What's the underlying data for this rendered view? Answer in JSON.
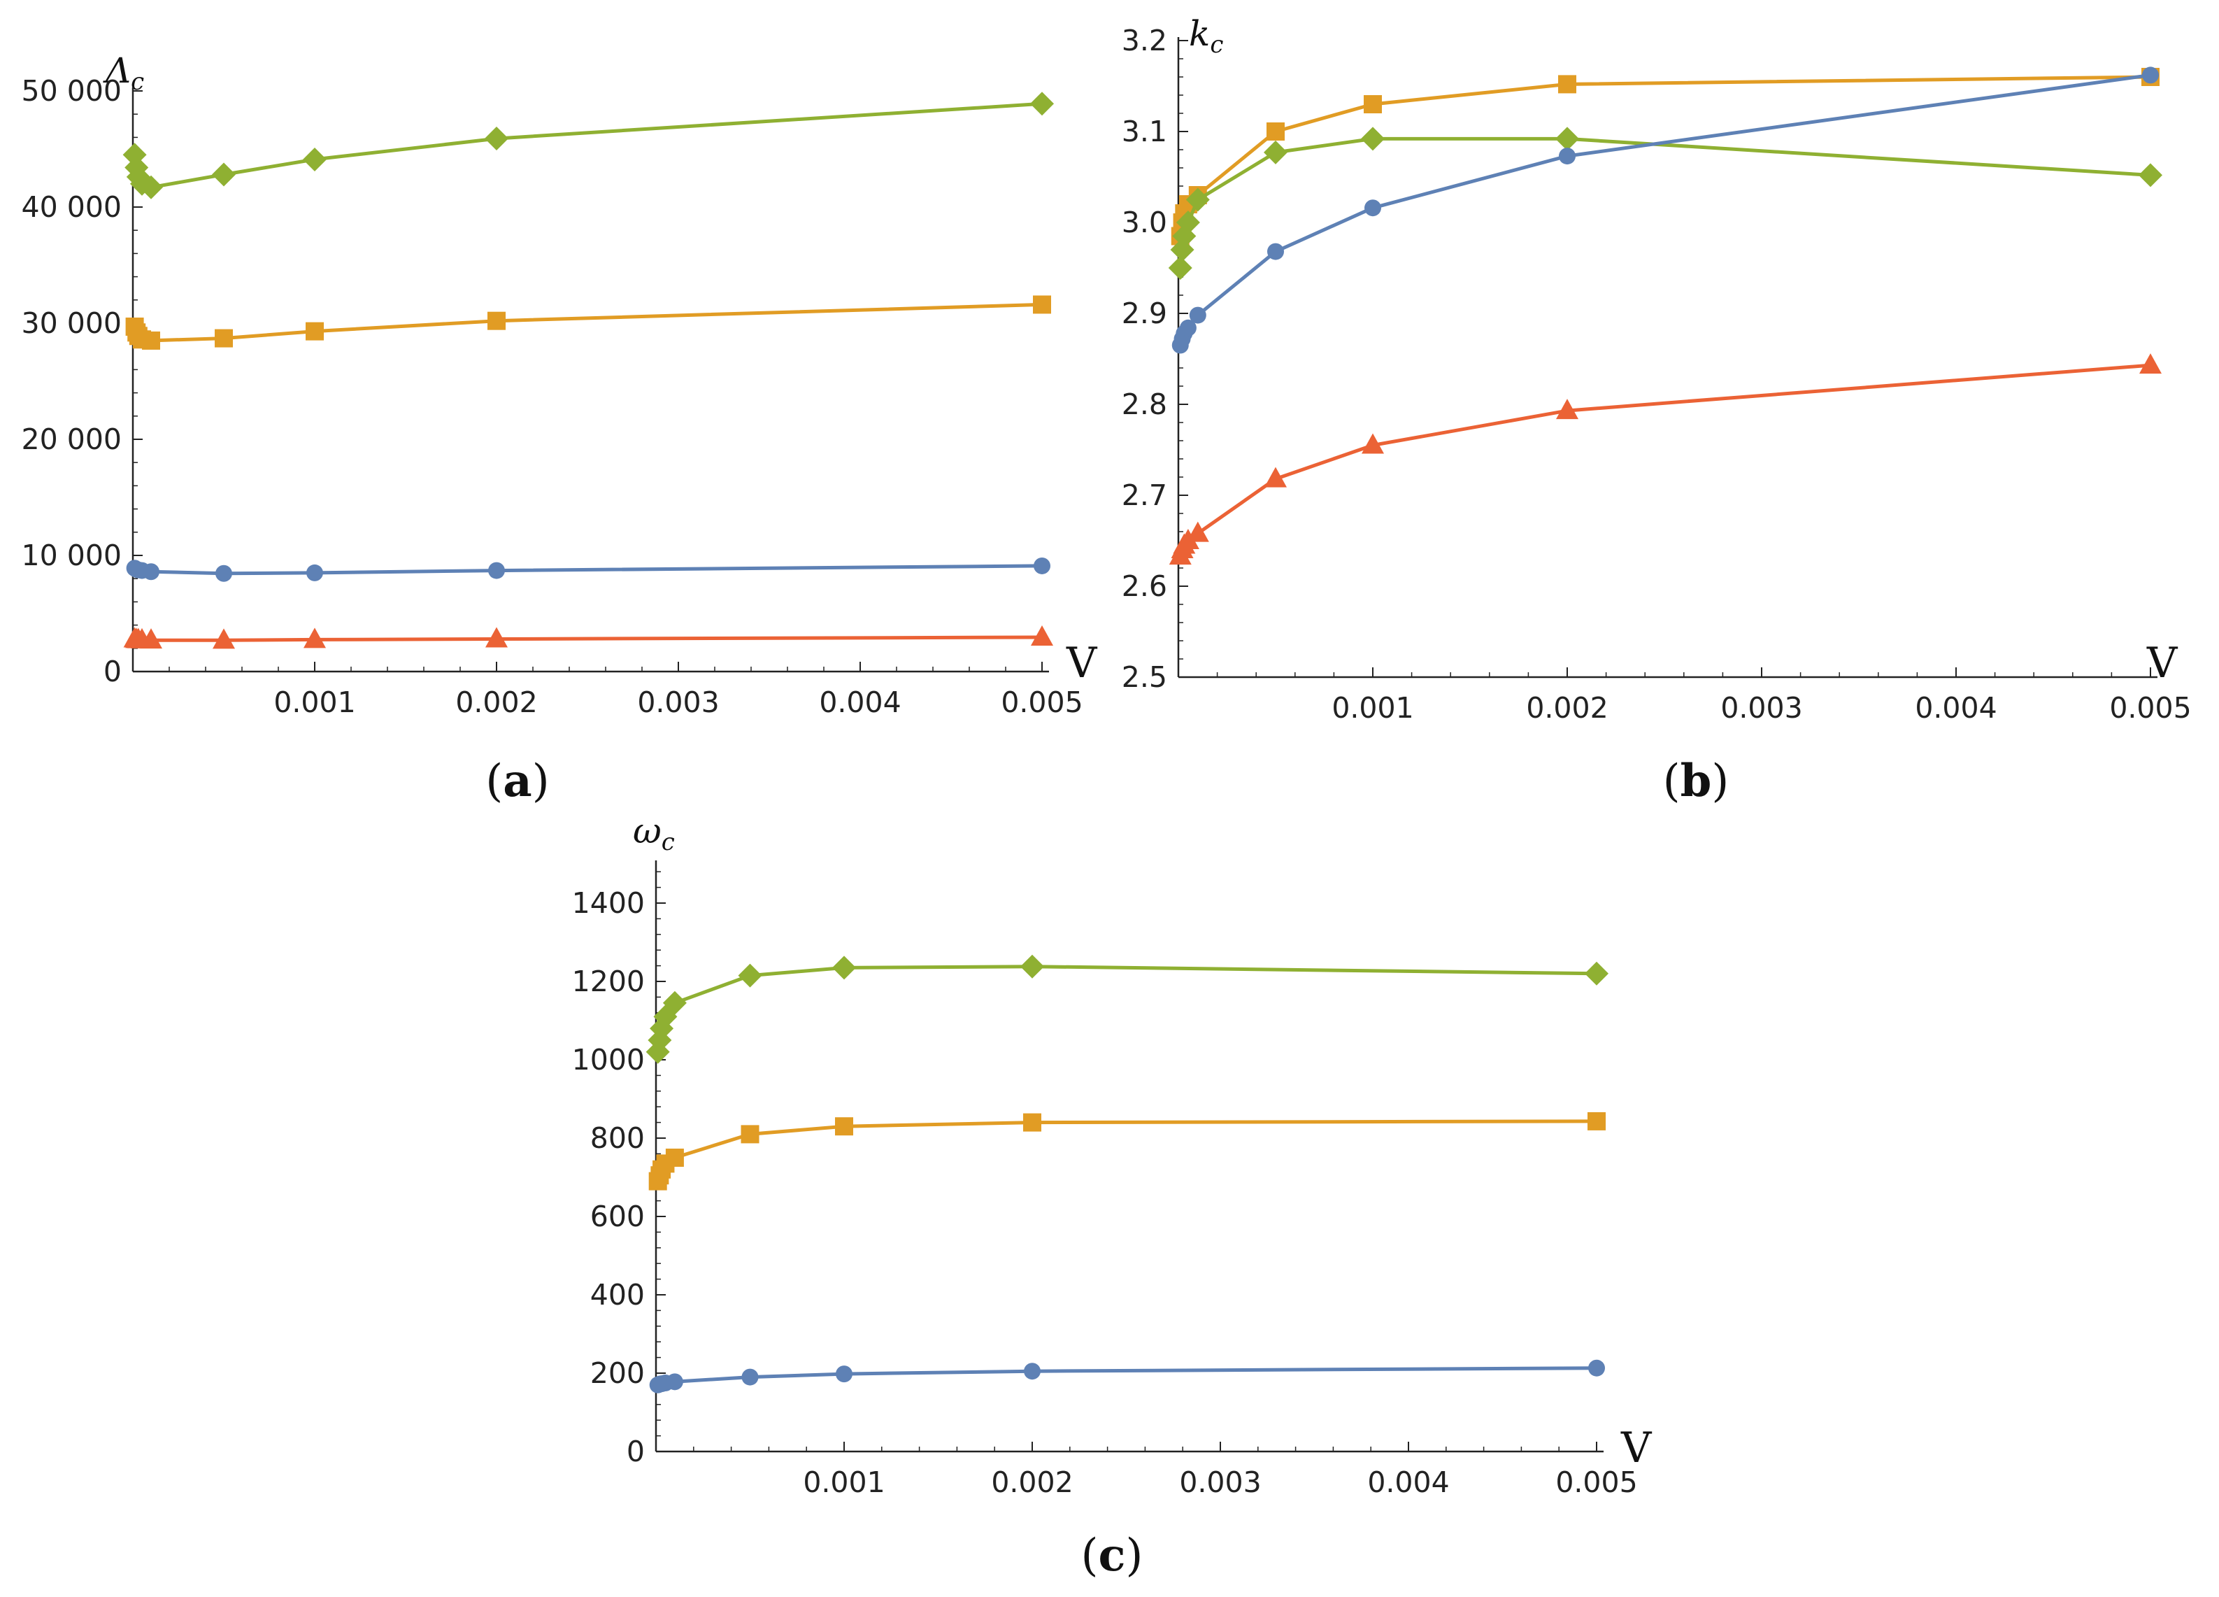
{
  "figure_colors": {
    "blue": "#5E81B5",
    "orange": "#E19C24",
    "green": "#8FB032",
    "red": "#EB6235",
    "axis": "#222222"
  },
  "chart_data": [
    {
      "id": "a",
      "type": "line",
      "panel_label": "a",
      "ylabel": "Λ",
      "ylabel_sub": "c",
      "xlabel": "V",
      "xlim": [
        0,
        0.005
      ],
      "ylim": [
        0,
        50000
      ],
      "xticks": [
        0.001,
        0.002,
        0.003,
        0.004,
        0.005
      ],
      "xtick_labels": [
        "0.001",
        "0.002",
        "0.003",
        "0.004",
        "0.005"
      ],
      "yticks": [
        0,
        10000,
        20000,
        30000,
        40000,
        50000
      ],
      "ytick_labels": [
        "0",
        "10 000",
        "20 000",
        "30 000",
        "40 000",
        "50 000"
      ],
      "x": [
        1e-05,
        2e-05,
        3e-05,
        5e-05,
        0.0001,
        0.0005,
        0.001,
        0.002,
        0.005
      ],
      "series": [
        {
          "name": "diamond series",
          "color": "#8FB032",
          "marker": "diamond",
          "values": [
            44500,
            43400,
            42600,
            42000,
            41700,
            42800,
            44100,
            45900,
            48900
          ]
        },
        {
          "name": "square series",
          "color": "#E19C24",
          "marker": "square",
          "values": [
            29700,
            29200,
            28900,
            28600,
            28500,
            28700,
            29300,
            30200,
            31600
          ]
        },
        {
          "name": "circle series",
          "color": "#5E81B5",
          "marker": "circle",
          "values": [
            8900,
            8800,
            8750,
            8700,
            8600,
            8450,
            8500,
            8700,
            9100
          ]
        },
        {
          "name": "triangle series",
          "color": "#EB6235",
          "marker": "triangle",
          "values": [
            2800,
            2750,
            2730,
            2720,
            2700,
            2690,
            2750,
            2800,
            2950
          ]
        }
      ]
    },
    {
      "id": "b",
      "type": "line",
      "panel_label": "b",
      "ylabel": "k",
      "ylabel_sub": "c",
      "xlabel": "V",
      "xlim": [
        0,
        0.005
      ],
      "ylim": [
        2.5,
        3.2
      ],
      "xticks": [
        0.001,
        0.002,
        0.003,
        0.004,
        0.005
      ],
      "xtick_labels": [
        "0.001",
        "0.002",
        "0.003",
        "0.004",
        "0.005"
      ],
      "yticks": [
        2.5,
        2.6,
        2.7,
        2.8,
        2.9,
        3.0,
        3.1,
        3.2
      ],
      "ytick_labels": [
        "2.5",
        "2.6",
        "2.7",
        "2.8",
        "2.9",
        "3.0",
        "3.1",
        "3.2"
      ],
      "x": [
        1e-05,
        2e-05,
        3e-05,
        5e-05,
        0.0001,
        0.0005,
        0.001,
        0.002,
        0.005
      ],
      "series": [
        {
          "name": "square series",
          "color": "#E19C24",
          "marker": "square",
          "values": [
            2.985,
            3.0,
            3.01,
            3.02,
            3.03,
            3.1,
            3.13,
            3.152,
            3.16
          ]
        },
        {
          "name": "diamond series",
          "color": "#8FB032",
          "marker": "diamond",
          "values": [
            2.95,
            2.97,
            2.985,
            3.0,
            3.025,
            3.077,
            3.092,
            3.092,
            3.052
          ]
        },
        {
          "name": "circle series",
          "color": "#5E81B5",
          "marker": "circle",
          "values": [
            2.865,
            2.872,
            2.878,
            2.884,
            2.898,
            2.968,
            3.016,
            3.073,
            3.162
          ]
        },
        {
          "name": "triangle series",
          "color": "#EB6235",
          "marker": "triangle",
          "values": [
            2.633,
            2.64,
            2.645,
            2.65,
            2.658,
            2.718,
            2.755,
            2.793,
            2.843
          ]
        }
      ]
    },
    {
      "id": "c",
      "type": "line",
      "panel_label": "c",
      "ylabel": "ω",
      "ylabel_sub": "c",
      "xlabel": "V",
      "xlim": [
        0,
        0.005
      ],
      "ylim": [
        0,
        1500
      ],
      "xticks": [
        0.001,
        0.002,
        0.003,
        0.004,
        0.005
      ],
      "xtick_labels": [
        "0.001",
        "0.002",
        "0.003",
        "0.004",
        "0.005"
      ],
      "yticks": [
        0,
        200,
        400,
        600,
        800,
        1000,
        1200,
        1400
      ],
      "ytick_labels": [
        "0",
        "200",
        "400",
        "600",
        "800",
        "1000",
        "1200",
        "1400"
      ],
      "x": [
        1e-05,
        2e-05,
        3e-05,
        5e-05,
        0.0001,
        0.0005,
        0.001,
        0.002,
        0.005
      ],
      "series": [
        {
          "name": "diamond series",
          "color": "#8FB032",
          "marker": "diamond",
          "values": [
            1020,
            1050,
            1080,
            1110,
            1145,
            1215,
            1235,
            1238,
            1220
          ]
        },
        {
          "name": "square series",
          "color": "#E19C24",
          "marker": "square",
          "values": [
            690,
            705,
            720,
            735,
            750,
            810,
            830,
            840,
            843
          ]
        },
        {
          "name": "circle series",
          "color": "#5E81B5",
          "marker": "circle",
          "values": [
            170,
            172,
            173,
            175,
            178,
            190,
            198,
            205,
            213
          ]
        }
      ]
    }
  ]
}
